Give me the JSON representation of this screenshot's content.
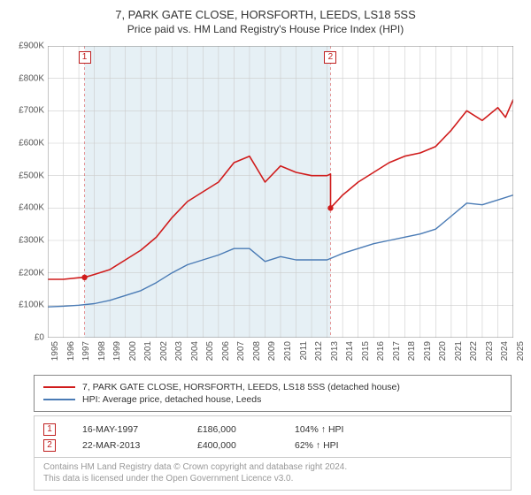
{
  "title": "7, PARK GATE CLOSE, HORSFORTH, LEEDS, LS18 5SS",
  "subtitle": "Price paid vs. HM Land Registry's House Price Index (HPI)",
  "chart": {
    "type": "line",
    "background_color": "#ffffff",
    "grid_color": "#cccccc",
    "axis_color": "#888888",
    "shade_color": "#e6f0f5",
    "sale_line_color": "#f0dada",
    "ylim": [
      0,
      900
    ],
    "ytick_step": 100,
    "ytick_prefix": "£",
    "ytick_suffix": "K",
    "xlim": [
      1995,
      2025
    ],
    "xtick_step": 1,
    "series": [
      {
        "name": "7, PARK GATE CLOSE, HORSFORTH, LEEDS, LS18 5SS (detached house)",
        "color": "#d01c1c",
        "line_width": 1.6,
        "x": [
          1995,
          1996,
          1997,
          1997.37,
          1998,
          1999,
          2000,
          2001,
          2002,
          2003,
          2004,
          2005,
          2006,
          2007,
          2008,
          2009,
          2010,
          2011,
          2012,
          2013,
          2013.22,
          2013.22,
          2014,
          2015,
          2016,
          2017,
          2018,
          2019,
          2020,
          2021,
          2022,
          2023,
          2024,
          2024.5,
          2025
        ],
        "y": [
          180,
          180,
          185,
          186,
          195,
          210,
          240,
          270,
          310,
          370,
          420,
          450,
          480,
          540,
          560,
          480,
          530,
          510,
          500,
          500,
          505,
          400,
          440,
          480,
          510,
          540,
          560,
          570,
          590,
          640,
          700,
          670,
          710,
          680,
          735
        ]
      },
      {
        "name": "HPI: Average price, detached house, Leeds",
        "color": "#4a7bb5",
        "line_width": 1.4,
        "x": [
          1995,
          1996,
          1997,
          1998,
          1999,
          2000,
          2001,
          2002,
          2003,
          2004,
          2005,
          2006,
          2007,
          2008,
          2009,
          2010,
          2011,
          2012,
          2013,
          2014,
          2015,
          2016,
          2017,
          2018,
          2019,
          2020,
          2021,
          2022,
          2023,
          2024,
          2025
        ],
        "y": [
          95,
          97,
          100,
          105,
          115,
          130,
          145,
          170,
          200,
          225,
          240,
          255,
          275,
          275,
          235,
          250,
          240,
          240,
          240,
          260,
          275,
          290,
          300,
          310,
          320,
          335,
          375,
          415,
          410,
          425,
          440
        ]
      }
    ],
    "sale_markers": [
      {
        "label": "1",
        "x": 1997.37,
        "y": 186,
        "point_color": "#d01c1c"
      },
      {
        "label": "2",
        "x": 2013.22,
        "y": 400,
        "point_color": "#d01c1c"
      }
    ]
  },
  "legend": {
    "rows": [
      {
        "color": "#d01c1c",
        "label": "7, PARK GATE CLOSE, HORSFORTH, LEEDS, LS18 5SS (detached house)"
      },
      {
        "color": "#4a7bb5",
        "label": "HPI: Average price, detached house, Leeds"
      }
    ]
  },
  "sales": [
    {
      "marker": "1",
      "date": "16-MAY-1997",
      "price": "£186,000",
      "hpi": "104% ↑ HPI"
    },
    {
      "marker": "2",
      "date": "22-MAR-2013",
      "price": "£400,000",
      "hpi": "62% ↑ HPI"
    }
  ],
  "footer": {
    "line1": "Contains HM Land Registry data © Crown copyright and database right 2024.",
    "line2": "This data is licensed under the Open Government Licence v3.0."
  }
}
